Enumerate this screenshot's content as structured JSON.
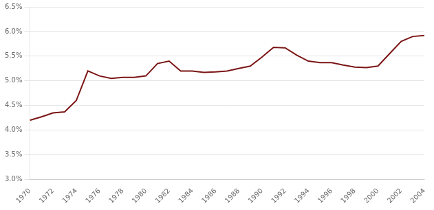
{
  "chart_data": {
    "type": "line",
    "x": [
      1970,
      1971,
      1972,
      1973,
      1974,
      1975,
      1976,
      1977,
      1978,
      1979,
      1980,
      1981,
      1982,
      1983,
      1984,
      1985,
      1986,
      1987,
      1988,
      1989,
      1990,
      1991,
      1992,
      1993,
      1994,
      1995,
      1996,
      1997,
      1998,
      1999,
      2000,
      2001,
      2002,
      2003,
      2004
    ],
    "values": [
      0.042,
      0.0427,
      0.0435,
      0.0437,
      0.046,
      0.052,
      0.051,
      0.0505,
      0.0507,
      0.0507,
      0.051,
      0.0535,
      0.054,
      0.052,
      0.052,
      0.0517,
      0.0518,
      0.052,
      0.0525,
      0.053,
      0.0548,
      0.0568,
      0.0567,
      0.0552,
      0.054,
      0.0537,
      0.0537,
      0.0532,
      0.0528,
      0.0527,
      0.053,
      0.0555,
      0.058,
      0.059,
      0.0592
    ],
    "color": "#7B1515",
    "xlim": [
      1970,
      2004
    ],
    "ylim": [
      0.03,
      0.065
    ],
    "xticks": [
      1970,
      1972,
      1974,
      1976,
      1978,
      1980,
      1982,
      1984,
      1986,
      1988,
      1990,
      1992,
      1994,
      1996,
      1998,
      2000,
      2002,
      2004
    ],
    "yticks": [
      {
        "value": 0.03,
        "label": "3.0%"
      },
      {
        "value": 0.035,
        "label": "3.5%"
      },
      {
        "value": 0.04,
        "label": "4.0%"
      },
      {
        "value": 0.045,
        "label": "4.5%"
      },
      {
        "value": 0.05,
        "label": "5.0%"
      },
      {
        "value": 0.055,
        "label": "5.5%"
      },
      {
        "value": 0.06,
        "label": "6.0%"
      },
      {
        "value": 0.065,
        "label": "6.5%"
      }
    ],
    "grid": "y"
  }
}
